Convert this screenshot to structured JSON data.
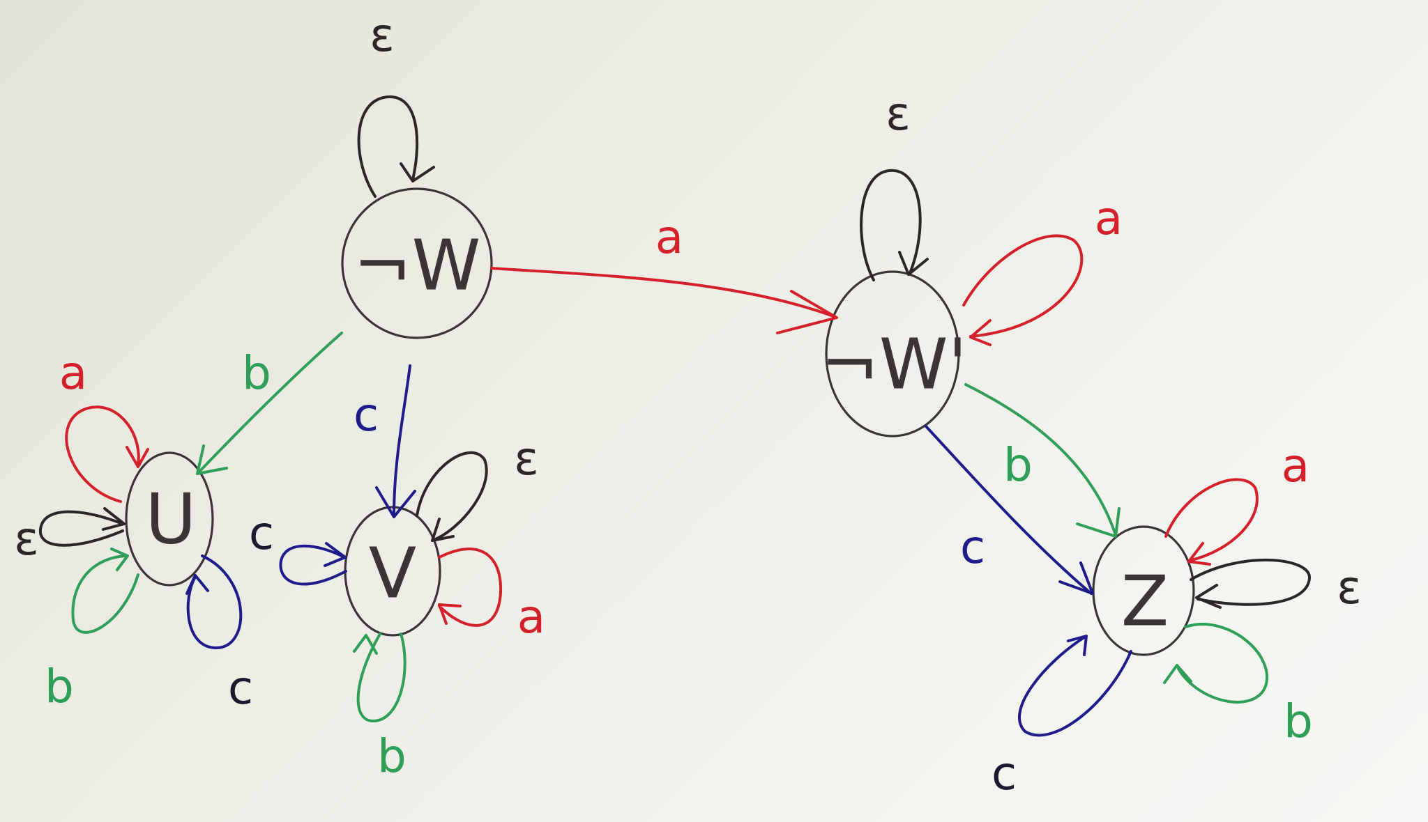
{
  "colors": {
    "a": "#d4202a",
    "b": "#2e9e58",
    "c": "#1f1b8a",
    "eps": "#2b2628",
    "c_dark": "#1a1a2e"
  },
  "nodes": {
    "w": {
      "label": "¬W"
    },
    "w2": {
      "label": "¬W'"
    },
    "u": {
      "label": "U"
    },
    "v": {
      "label": "V"
    },
    "z": {
      "label": "Z"
    }
  },
  "edges": {
    "w_w2_a": {
      "label": "a"
    },
    "w_u_b": {
      "label": "b"
    },
    "w_v_c": {
      "label": "c"
    },
    "w2_z_b": {
      "label": "b"
    },
    "w2_z_c": {
      "label": "c"
    }
  },
  "loops": {
    "w_eps": {
      "label": "ε"
    },
    "w2_eps": {
      "label": "ε"
    },
    "w2_a": {
      "label": "a"
    },
    "u_a": {
      "label": "a"
    },
    "u_eps": {
      "label": "ε"
    },
    "u_b": {
      "label": "b"
    },
    "u_c": {
      "label": "c"
    },
    "v_eps": {
      "label": "ε"
    },
    "v_c": {
      "label": "c"
    },
    "v_a": {
      "label": "a"
    },
    "v_b": {
      "label": "b"
    },
    "z_a": {
      "label": "a"
    },
    "z_eps": {
      "label": "ε"
    },
    "z_b": {
      "label": "b"
    },
    "z_c": {
      "label": "c"
    }
  }
}
